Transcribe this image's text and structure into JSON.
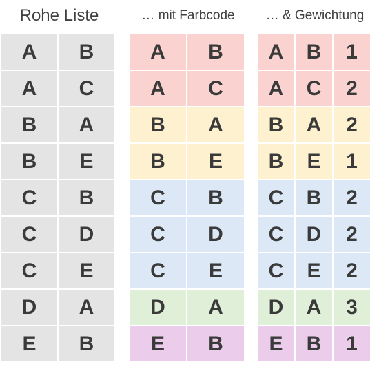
{
  "headers": {
    "raw": "Rohe Liste",
    "color": "… mit Farbcode",
    "weight": "… & Gewichtung"
  },
  "colors": {
    "gray": "#e4e4e4",
    "A": "#fad3d1",
    "B": "#fdf1cf",
    "C": "#dce8f6",
    "D": "#e0efd8",
    "E": "#ebcdeb"
  },
  "raw_rows": [
    [
      "A",
      "B"
    ],
    [
      "A",
      "C"
    ],
    [
      "B",
      "A"
    ],
    [
      "B",
      "E"
    ],
    [
      "C",
      "B"
    ],
    [
      "C",
      "D"
    ],
    [
      "C",
      "E"
    ],
    [
      "D",
      "A"
    ],
    [
      "E",
      "B"
    ]
  ],
  "color_rows": [
    [
      "A",
      "B"
    ],
    [
      "A",
      "C"
    ],
    [
      "B",
      "A"
    ],
    [
      "B",
      "E"
    ],
    [
      "C",
      "B"
    ],
    [
      "C",
      "D"
    ],
    [
      "C",
      "E"
    ],
    [
      "D",
      "A"
    ],
    [
      "E",
      "B"
    ]
  ],
  "weighted_rows": [
    [
      "A",
      "B",
      "1"
    ],
    [
      "A",
      "C",
      "2"
    ],
    [
      "B",
      "A",
      "2"
    ],
    [
      "B",
      "E",
      "1"
    ],
    [
      "C",
      "B",
      "2"
    ],
    [
      "C",
      "D",
      "2"
    ],
    [
      "C",
      "E",
      "2"
    ],
    [
      "D",
      "A",
      "3"
    ],
    [
      "E",
      "B",
      "1"
    ]
  ]
}
